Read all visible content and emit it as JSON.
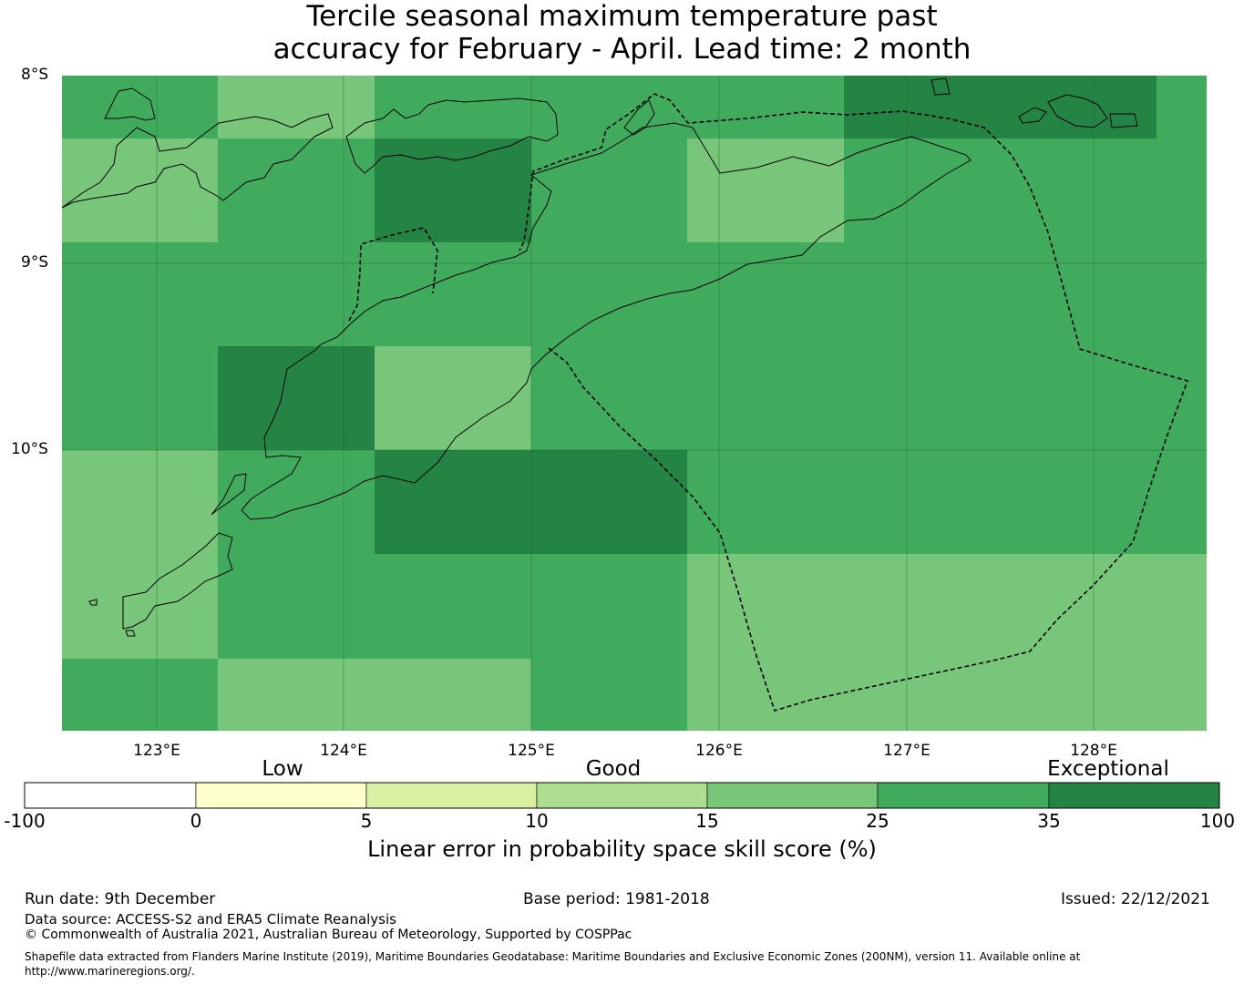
{
  "title": {
    "line1": "Tercile seasonal maximum temperature past",
    "line2": "accuracy for February - April. Lead time: 2 month"
  },
  "map": {
    "lat_labels": [
      "8°S",
      "9°S",
      "10°S"
    ],
    "lon_labels": [
      "123°E",
      "124°E",
      "125°E",
      "126°E",
      "127°E",
      "128°E"
    ],
    "lat_range": [
      -11.5,
      -8.0
    ],
    "lon_range": [
      122.5,
      128.6
    ],
    "grid_cells": [
      {
        "row": 0,
        "col": 0,
        "category": "25-35"
      },
      {
        "row": 0,
        "col": 1,
        "category": "15-25"
      },
      {
        "row": 0,
        "col": 2,
        "category": "25-35"
      },
      {
        "row": 0,
        "col": 3,
        "category": "25-35"
      },
      {
        "row": 0,
        "col": 4,
        "category": "25-35"
      },
      {
        "row": 0,
        "col": 5,
        "category": "35-100"
      },
      {
        "row": 0,
        "col": 6,
        "category": "35-100"
      },
      {
        "row": 0,
        "col": 7,
        "category": "25-35"
      },
      {
        "row": 1,
        "col": 0,
        "category": "15-25"
      },
      {
        "row": 1,
        "col": 1,
        "category": "25-35"
      },
      {
        "row": 1,
        "col": 2,
        "category": "35-100"
      },
      {
        "row": 1,
        "col": 3,
        "category": "25-35"
      },
      {
        "row": 1,
        "col": 4,
        "category": "15-25"
      },
      {
        "row": 1,
        "col": 5,
        "category": "25-35"
      },
      {
        "row": 1,
        "col": 6,
        "category": "25-35"
      },
      {
        "row": 1,
        "col": 7,
        "category": "25-35"
      },
      {
        "row": 2,
        "col": 0,
        "category": "25-35"
      },
      {
        "row": 2,
        "col": 1,
        "category": "25-35"
      },
      {
        "row": 2,
        "col": 2,
        "category": "25-35"
      },
      {
        "row": 2,
        "col": 3,
        "category": "25-35"
      },
      {
        "row": 2,
        "col": 4,
        "category": "25-35"
      },
      {
        "row": 2,
        "col": 5,
        "category": "25-35"
      },
      {
        "row": 2,
        "col": 6,
        "category": "25-35"
      },
      {
        "row": 2,
        "col": 7,
        "category": "25-35"
      },
      {
        "row": 3,
        "col": 0,
        "category": "25-35"
      },
      {
        "row": 3,
        "col": 1,
        "category": "35-100"
      },
      {
        "row": 3,
        "col": 2,
        "category": "15-25"
      },
      {
        "row": 3,
        "col": 3,
        "category": "25-35"
      },
      {
        "row": 3,
        "col": 4,
        "category": "25-35"
      },
      {
        "row": 3,
        "col": 5,
        "category": "25-35"
      },
      {
        "row": 3,
        "col": 6,
        "category": "25-35"
      },
      {
        "row": 3,
        "col": 7,
        "category": "25-35"
      },
      {
        "row": 4,
        "col": 0,
        "category": "15-25"
      },
      {
        "row": 4,
        "col": 1,
        "category": "25-35"
      },
      {
        "row": 4,
        "col": 2,
        "category": "35-100"
      },
      {
        "row": 4,
        "col": 3,
        "category": "35-100"
      },
      {
        "row": 4,
        "col": 4,
        "category": "25-35"
      },
      {
        "row": 4,
        "col": 5,
        "category": "25-35"
      },
      {
        "row": 4,
        "col": 6,
        "category": "25-35"
      },
      {
        "row": 4,
        "col": 7,
        "category": "25-35"
      },
      {
        "row": 5,
        "col": 0,
        "category": "15-25"
      },
      {
        "row": 5,
        "col": 1,
        "category": "25-35"
      },
      {
        "row": 5,
        "col": 2,
        "category": "25-35"
      },
      {
        "row": 5,
        "col": 3,
        "category": "25-35"
      },
      {
        "row": 5,
        "col": 4,
        "category": "15-25"
      },
      {
        "row": 5,
        "col": 5,
        "category": "15-25"
      },
      {
        "row": 5,
        "col": 6,
        "category": "15-25"
      },
      {
        "row": 5,
        "col": 7,
        "category": "15-25"
      },
      {
        "row": 6,
        "col": 0,
        "category": "25-35"
      },
      {
        "row": 6,
        "col": 1,
        "category": "15-25"
      },
      {
        "row": 6,
        "col": 2,
        "category": "15-25"
      },
      {
        "row": 6,
        "col": 3,
        "category": "25-35"
      },
      {
        "row": 6,
        "col": 4,
        "category": "15-25"
      },
      {
        "row": 6,
        "col": 5,
        "category": "15-25"
      },
      {
        "row": 6,
        "col": 6,
        "category": "15-25"
      },
      {
        "row": 6,
        "col": 7,
        "category": "15-25"
      }
    ]
  },
  "colorbar": {
    "words": [
      "Low",
      "Good",
      "Exceptional"
    ],
    "ticks": [
      "-100",
      "0",
      "5",
      "10",
      "15",
      "25",
      "35",
      "100"
    ],
    "bins": [
      {
        "range": "-100-0",
        "color": "#ffffff"
      },
      {
        "range": "0-5",
        "color": "#ffffcc"
      },
      {
        "range": "5-10",
        "color": "#d9f0a3"
      },
      {
        "range": "10-15",
        "color": "#addd8e"
      },
      {
        "range": "15-25",
        "color": "#78c679"
      },
      {
        "range": "25-35",
        "color": "#41ab5d"
      },
      {
        "range": "35-100",
        "color": "#238443"
      }
    ],
    "label": "Linear error in probability space skill score (%)"
  },
  "footer": {
    "run_date": "Run date: 9th December",
    "base_period": "Base period: 1981-2018",
    "issued": "Issued: 22/12/2021",
    "data_source": "Data source: ACCESS-S2 and ERA5 Climate Reanalysis",
    "copyright": "© Commonwealth of Australia 2021, Australian Bureau of Meteorology, Supported by COSPPac",
    "shapefile_line1": "Shapefile data extracted from Flanders Marine Institute (2019), Maritime Boundaries Geodatabase: Maritime Boundaries and Exclusive Economic Zones (200NM), version 11. Available online at",
    "shapefile_line2": "http://www.marineregions.org/."
  }
}
